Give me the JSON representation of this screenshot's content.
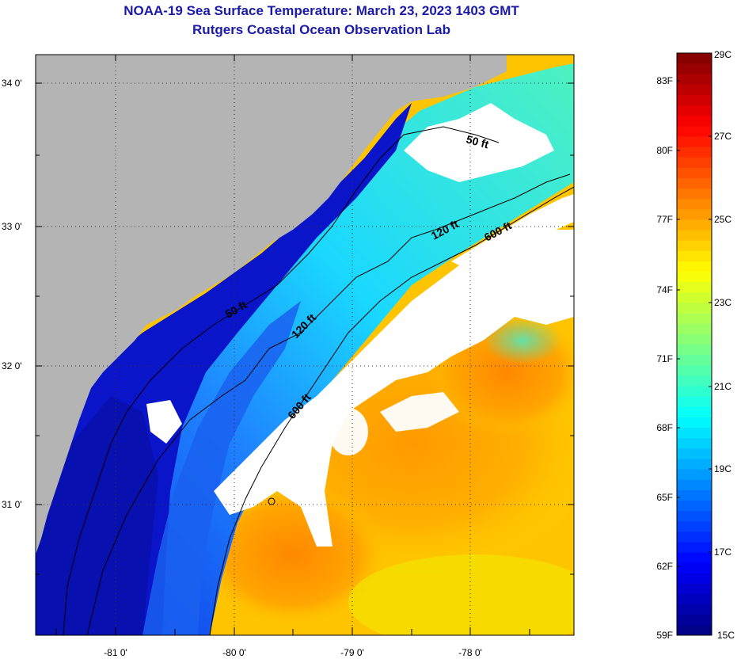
{
  "header": {
    "title": "NOAA-19 Sea Surface Temperature:  March 23, 2023 1403 GMT",
    "subtitle": "Rutgers Coastal Ocean Observation Lab"
  },
  "map": {
    "lat_labels": [
      "34 0'",
      "33 0'",
      "32 0'",
      "31 0'"
    ],
    "lon_labels": [
      "-81 0'",
      "-80 0'",
      "-79 0'",
      "-78 0'"
    ],
    "contour_labels": [
      "50 ft",
      "120 ft",
      "600 ft",
      "50 ft",
      "120 ft",
      "600 ft"
    ],
    "colors": {
      "land": "#b4b4b4",
      "cloud": "#ffffff",
      "contour": "#000000"
    }
  },
  "colorbar": {
    "fahrenheit_labels": [
      "83F",
      "80F",
      "77F",
      "74F",
      "71F",
      "68F",
      "65F",
      "62F",
      "59F"
    ],
    "celsius_labels": [
      "29C",
      "27C",
      "25C",
      "23C",
      "21C",
      "19C",
      "17C",
      "15C"
    ],
    "range_c": [
      15,
      29
    ]
  }
}
